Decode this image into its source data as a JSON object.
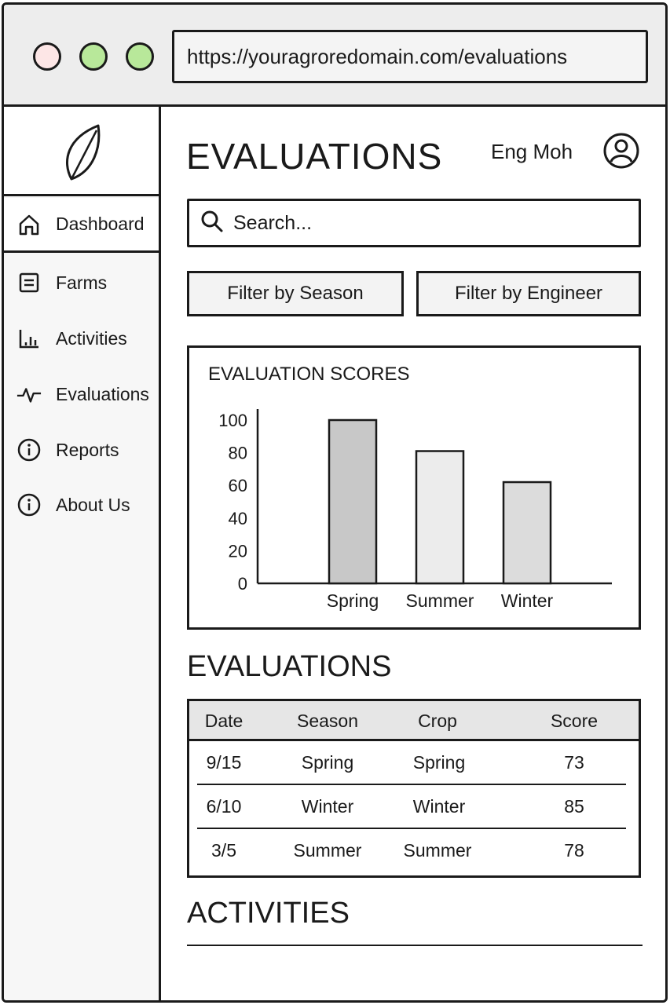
{
  "browser": {
    "url": "https://youragroredomain.com/evaluations",
    "window_dots": [
      {
        "name": "close",
        "color": "#fde6e6"
      },
      {
        "name": "minimize",
        "color": "#b8e89a"
      },
      {
        "name": "maximize",
        "color": "#b8e89a"
      }
    ]
  },
  "sidebar": {
    "logo_icon": "leaf-icon",
    "items": [
      {
        "label": "Dashboard",
        "icon": "home-icon",
        "active": true
      },
      {
        "label": "Farms",
        "icon": "document-icon"
      },
      {
        "label": "Activities",
        "icon": "bar-chart-icon"
      },
      {
        "label": "Evaluations",
        "icon": "pulse-icon"
      },
      {
        "label": "Reports",
        "icon": "info-icon"
      },
      {
        "label": "About Us",
        "icon": "info-icon"
      }
    ]
  },
  "header": {
    "title": "EVALUATIONS",
    "user_name": "Eng Moh",
    "avatar_icon": "user-circle-icon"
  },
  "search": {
    "placeholder": "Search...",
    "icon": "search-icon"
  },
  "filters": {
    "season_label": "Filter by Season",
    "engineer_label": "Filter by Engineer"
  },
  "chart_data": {
    "type": "bar",
    "title": "EVALUATION SCORES",
    "categories": [
      "Spring",
      "Summer",
      "Winter"
    ],
    "values": [
      100,
      81,
      62
    ],
    "colors": [
      "#c8c8c8",
      "#ececec",
      "#dcdcdc"
    ],
    "ylim": [
      0,
      100
    ],
    "yticks": [
      "0",
      "20",
      "40",
      "60",
      "80",
      "100"
    ],
    "xlabel": "",
    "ylabel": "",
    "grid": false
  },
  "evaluations": {
    "title": "EVALUATIONS",
    "columns": [
      "Date",
      "Season",
      "Crop",
      "Score"
    ],
    "rows": [
      [
        "9/15",
        "Spring",
        "Spring",
        "73"
      ],
      [
        "6/10",
        "Winter",
        "Winter",
        "85"
      ],
      [
        "3/5",
        "Summer",
        "Summer",
        "78"
      ]
    ]
  },
  "activities": {
    "title": "ACTIVITIES"
  }
}
